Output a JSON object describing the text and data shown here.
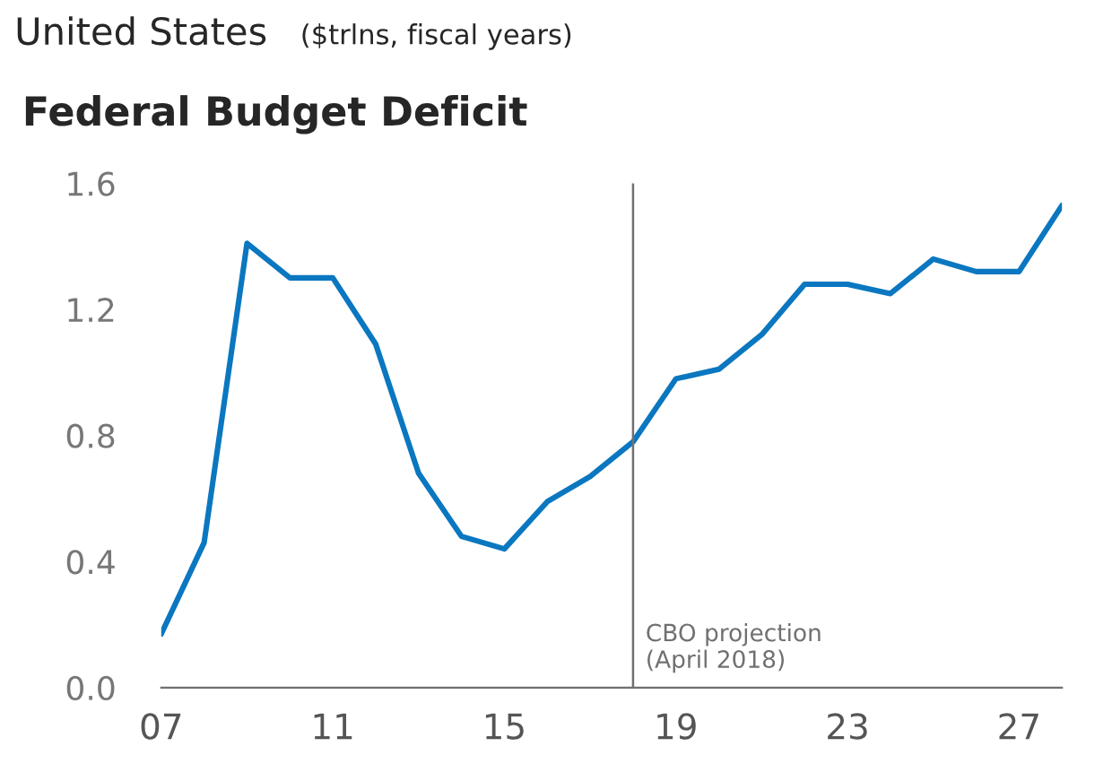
{
  "chart_data": {
    "type": "line",
    "title": "Federal Budget Deficit",
    "annotations": [
      "United States",
      "($trlns, fiscal years)"
    ],
    "x": [
      2007,
      2008,
      2009,
      2010,
      2011,
      2012,
      2013,
      2014,
      2015,
      2016,
      2017,
      2018,
      2019,
      2020,
      2021,
      2022,
      2023,
      2024,
      2025,
      2026,
      2027,
      2028
    ],
    "series": [
      {
        "color": "#0a77c0",
        "values": [
          0.17,
          0.46,
          1.41,
          1.3,
          1.3,
          1.09,
          0.68,
          0.48,
          0.44,
          0.59,
          0.67,
          0.78,
          0.98,
          1.01,
          1.12,
          1.28,
          1.28,
          1.25,
          1.36,
          1.32,
          1.32,
          1.53
        ]
      }
    ],
    "xlim": [
      2007,
      2028
    ],
    "ylim": [
      0,
      1.6
    ],
    "xticks": [
      {
        "value": 2007,
        "label": "07"
      },
      {
        "value": 2011,
        "label": "11"
      },
      {
        "value": 2015,
        "label": "15"
      },
      {
        "value": 2019,
        "label": "19"
      },
      {
        "value": 2023,
        "label": "23"
      },
      {
        "value": 2027,
        "label": "27"
      }
    ],
    "yticks": [
      {
        "value": 0,
        "label": "0.0"
      },
      {
        "value": 0.4,
        "label": "0.4"
      },
      {
        "value": 0.8,
        "label": "0.8"
      },
      {
        "value": 1.2,
        "label": "1.2"
      },
      {
        "value": 1.6,
        "label": "1.6"
      }
    ],
    "ref_lines": [
      {
        "axis": "x",
        "value": 2018,
        "label": "CBO projection\n(April 2018)",
        "color": "#707070"
      }
    ],
    "grid": false,
    "marker": "none",
    "line_style": "solid"
  }
}
